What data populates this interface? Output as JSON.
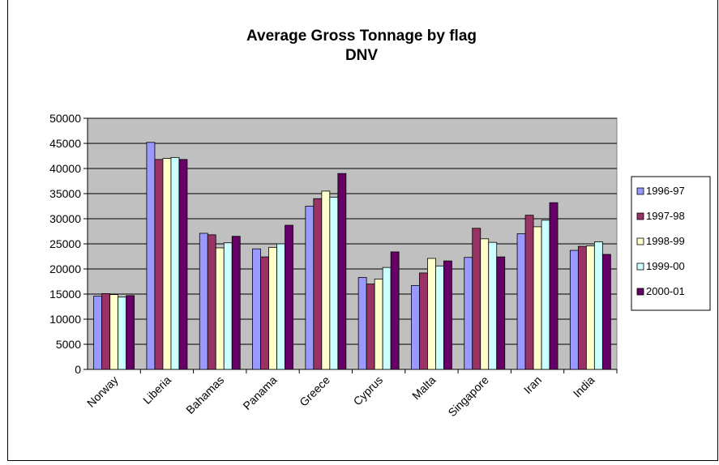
{
  "chart_data": {
    "type": "bar",
    "title": "Average Gross Tonnage by flag",
    "subtitle": "DNV",
    "xlabel": "",
    "ylabel": "",
    "ylim": [
      0,
      50000
    ],
    "yticks": [
      0,
      5000,
      10000,
      15000,
      20000,
      25000,
      30000,
      35000,
      40000,
      45000,
      50000
    ],
    "grid": true,
    "legend_position": "right",
    "plot_background": "#c0c0c0",
    "categories": [
      "Norway",
      "Liberia",
      "Bahamas",
      "Panama",
      "Greece",
      "Cyprus",
      "Malta",
      "Singapore",
      "Iran",
      "India"
    ],
    "series": [
      {
        "name": "1996-97",
        "color": "#9999ff",
        "values": [
          14600,
          45200,
          27100,
          24000,
          32500,
          18300,
          16700,
          22300,
          27000,
          23700
        ]
      },
      {
        "name": "1997-98",
        "color": "#993366",
        "values": [
          15100,
          41800,
          26800,
          22400,
          34000,
          17000,
          19200,
          28100,
          30700,
          24500
        ]
      },
      {
        "name": "1998-99",
        "color": "#ffffcc",
        "values": [
          14900,
          42000,
          24200,
          24300,
          35500,
          18000,
          22100,
          26000,
          28400,
          24600
        ]
      },
      {
        "name": "1999-00",
        "color": "#ccffff",
        "values": [
          14400,
          42200,
          25200,
          25000,
          34300,
          20300,
          20600,
          25300,
          29700,
          25400
        ]
      },
      {
        "name": "2000-01",
        "color": "#660066",
        "values": [
          14700,
          41800,
          26500,
          28700,
          39000,
          23400,
          21600,
          22400,
          33200,
          22900
        ]
      }
    ]
  }
}
